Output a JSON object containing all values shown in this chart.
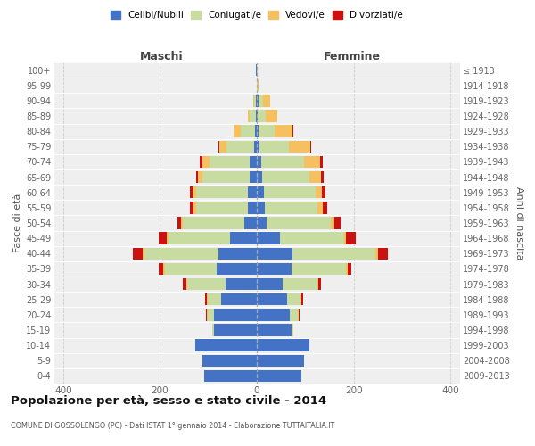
{
  "age_groups": [
    "100+",
    "95-99",
    "90-94",
    "85-89",
    "80-84",
    "75-79",
    "70-74",
    "65-69",
    "60-64",
    "55-59",
    "50-54",
    "45-49",
    "40-44",
    "35-39",
    "30-34",
    "25-29",
    "20-24",
    "15-19",
    "10-14",
    "5-9",
    "0-4"
  ],
  "birth_years": [
    "≤ 1913",
    "1914-1918",
    "1919-1923",
    "1924-1928",
    "1929-1933",
    "1934-1938",
    "1939-1943",
    "1944-1948",
    "1949-1953",
    "1954-1958",
    "1959-1963",
    "1964-1968",
    "1969-1973",
    "1974-1978",
    "1979-1983",
    "1984-1988",
    "1989-1993",
    "1994-1998",
    "1999-2003",
    "2004-2008",
    "2009-2013"
  ],
  "males_celibi": [
    1,
    0,
    1,
    2,
    3,
    5,
    15,
    14,
    18,
    18,
    25,
    55,
    80,
    82,
    65,
    73,
    88,
    88,
    128,
    112,
    108
  ],
  "males_coniugati": [
    0,
    0,
    5,
    12,
    30,
    58,
    83,
    98,
    108,
    108,
    128,
    128,
    152,
    108,
    78,
    28,
    13,
    4,
    0,
    0,
    0
  ],
  "males_vedovi": [
    0,
    0,
    2,
    5,
    14,
    14,
    14,
    9,
    7,
    5,
    3,
    3,
    4,
    3,
    3,
    2,
    2,
    0,
    0,
    0,
    0
  ],
  "males_divorziati": [
    0,
    0,
    0,
    0,
    0,
    3,
    5,
    5,
    5,
    8,
    8,
    17,
    20,
    10,
    7,
    3,
    2,
    0,
    0,
    0,
    0
  ],
  "females_nubili": [
    0,
    0,
    3,
    2,
    3,
    5,
    10,
    11,
    14,
    17,
    21,
    48,
    73,
    72,
    53,
    63,
    68,
    72,
    108,
    98,
    93
  ],
  "females_coniugate": [
    0,
    2,
    10,
    17,
    33,
    62,
    88,
    98,
    108,
    108,
    132,
    132,
    172,
    112,
    72,
    28,
    16,
    4,
    0,
    0,
    0
  ],
  "females_vedove": [
    0,
    2,
    14,
    24,
    38,
    43,
    33,
    23,
    13,
    11,
    7,
    5,
    5,
    3,
    3,
    2,
    2,
    0,
    0,
    0,
    0
  ],
  "females_divorziate": [
    0,
    0,
    0,
    0,
    2,
    3,
    5,
    7,
    7,
    9,
    14,
    19,
    21,
    9,
    4,
    3,
    2,
    0,
    0,
    0,
    0
  ],
  "color_celibi": "#4472c4",
  "color_coniugati": "#c8dba0",
  "color_vedovi": "#f5c060",
  "color_divorziati": "#cc1111",
  "xlim": 420,
  "title": "Popolazione per età, sesso e stato civile - 2014",
  "subtitle": "COMUNE DI GOSSOLENGO (PC) - Dati ISTAT 1° gennaio 2014 - Elaborazione TUTTAITALIA.IT",
  "ylabel": "Fasce di età",
  "ylabel_right": "Anni di nascita",
  "label_maschi": "Maschi",
  "label_femmine": "Femmine",
  "legend_labels": [
    "Celibi/Nubili",
    "Coniugati/e",
    "Vedovi/e",
    "Divorziati/e"
  ],
  "bg_color": "#efefef"
}
